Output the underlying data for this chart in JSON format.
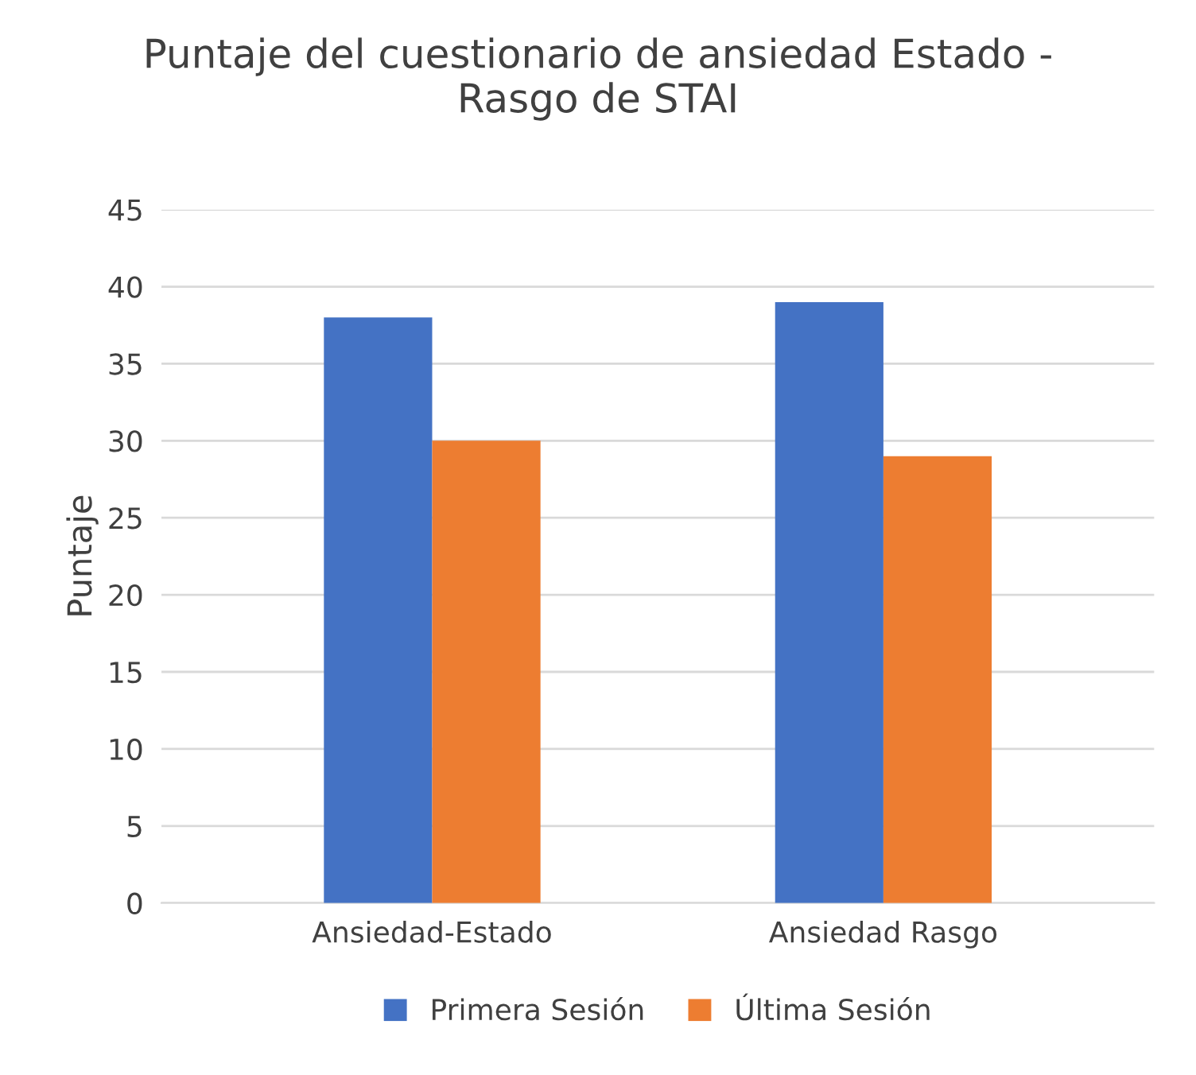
{
  "chart_data": {
    "type": "bar",
    "title": "Puntaje del cuestionario de ansiedad Estado -\nRasgo de STAI",
    "ylabel": "Puntaje",
    "categories": [
      "Ansiedad-Estado",
      "Ansiedad Rasgo"
    ],
    "series": [
      {
        "name": "Primera Sesión",
        "color": "#4472c4",
        "values": [
          38,
          39
        ]
      },
      {
        "name": "Última Sesión",
        "color": "#ed7d31",
        "values": [
          30,
          29
        ]
      }
    ],
    "ylim": [
      0,
      45
    ],
    "yticks": [
      0,
      5,
      10,
      15,
      20,
      25,
      30,
      35,
      40,
      45
    ],
    "grid": "y",
    "legend": "bottom"
  }
}
